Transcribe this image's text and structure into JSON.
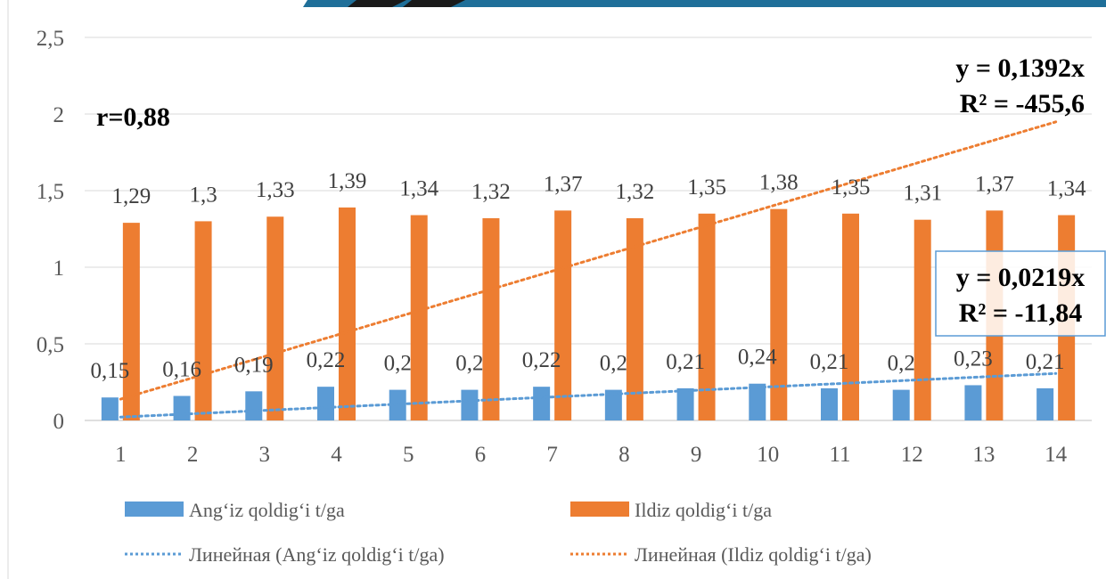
{
  "chart_data": {
    "type": "bar",
    "categories": [
      "1",
      "2",
      "3",
      "4",
      "5",
      "6",
      "7",
      "8",
      "9",
      "10",
      "11",
      "12",
      "13",
      "14"
    ],
    "series": [
      {
        "name": "Ang‘iz qoldig‘i t/ga",
        "values": [
          0.15,
          0.16,
          0.19,
          0.22,
          0.2,
          0.2,
          0.22,
          0.2,
          0.21,
          0.24,
          0.21,
          0.2,
          0.23,
          0.21
        ],
        "labels": [
          "0,15",
          "0,16",
          "0,19",
          "0,22",
          "0,2",
          "0,2",
          "0,22",
          "0,2",
          "0,21",
          "0,24",
          "0,21",
          "0,2",
          "0,23",
          "0,21"
        ],
        "color": "#5B9BD5"
      },
      {
        "name": "Ildiz qoldig‘i t/ga",
        "values": [
          1.29,
          1.3,
          1.33,
          1.39,
          1.34,
          1.32,
          1.37,
          1.32,
          1.35,
          1.38,
          1.35,
          1.31,
          1.37,
          1.34
        ],
        "labels": [
          "1,29",
          "1,3",
          "1,33",
          "1,39",
          "1,34",
          "1,32",
          "1,37",
          "1,32",
          "1,35",
          "1,38",
          "1,35",
          "1,31",
          "1,37",
          "1,34"
        ],
        "color": "#ED7D31"
      }
    ],
    "trendlines": [
      {
        "name": "Линейная (Ang‘iz qoldig‘i t/ga)",
        "slope": 0.0219,
        "color": "#5B9BD5"
      },
      {
        "name": "Линейная (Ildiz qoldig‘i t/ga)",
        "slope": 0.1392,
        "color": "#ED7D31"
      }
    ],
    "ylim": [
      0,
      2.5
    ],
    "yticks": [
      {
        "value": 0,
        "label": "0"
      },
      {
        "value": 0.5,
        "label": "0,5"
      },
      {
        "value": 1,
        "label": "1"
      },
      {
        "value": 1.5,
        "label": "1,5"
      },
      {
        "value": 2,
        "label": "2"
      },
      {
        "value": 2.5,
        "label": "2,5"
      }
    ],
    "grid": true,
    "legend_position": "bottom",
    "annotations": {
      "r": "r=0,88",
      "orange_eq": "y = 0,1392x",
      "orange_r2": "R² = -455,6",
      "blue_eq": "y = 0,0219x",
      "blue_r2": "R² = -11,84"
    }
  }
}
